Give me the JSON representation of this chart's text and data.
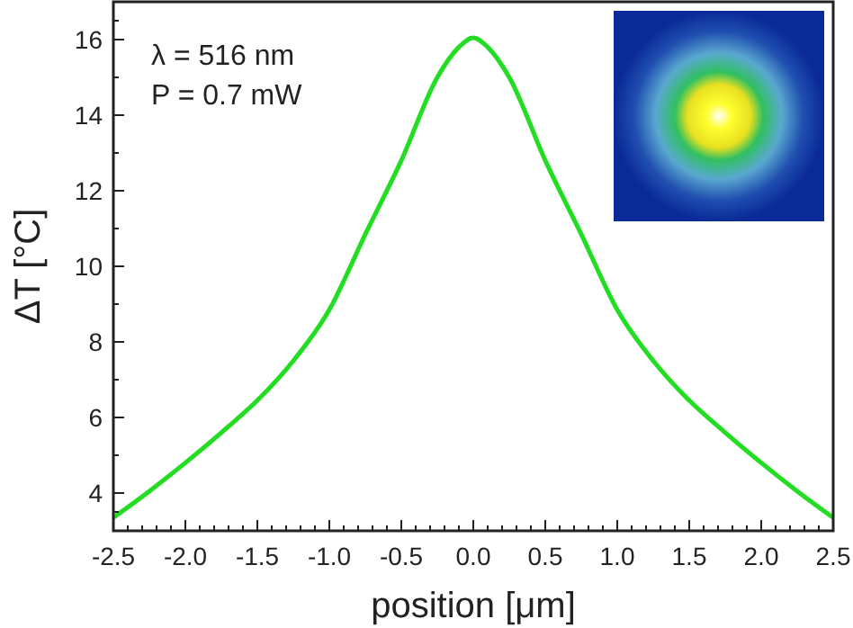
{
  "chart_data": {
    "type": "line",
    "xlabel": "position [μm]",
    "ylabel": "ΔT [°C]",
    "annotations": [
      "λ = 516 nm",
      "P = 0.7 mW"
    ],
    "x": [
      -2.5,
      -2.25,
      -2,
      -1.75,
      -1.5,
      -1.25,
      -1,
      -0.75,
      -0.5,
      -0.25,
      -0.1,
      0,
      0.1,
      0.25,
      0.5,
      0.75,
      1,
      1.25,
      1.5,
      1.75,
      2,
      2.25,
      2.5
    ],
    "series": [
      {
        "color": "#22dd22",
        "values": [
          3.35,
          4.05,
          4.8,
          5.6,
          6.45,
          7.5,
          8.85,
          10.85,
          12.8,
          15.0,
          15.8,
          16.05,
          15.8,
          15.0,
          12.8,
          10.85,
          8.85,
          7.5,
          6.45,
          5.6,
          4.8,
          4.05,
          3.35
        ]
      }
    ],
    "xlim": [
      -2.5,
      2.5
    ],
    "xticks": [
      {
        "value": -2.5,
        "label": "-2.5"
      },
      {
        "value": -2,
        "label": "-2.0"
      },
      {
        "value": -1.5,
        "label": "-1.5"
      },
      {
        "value": -1,
        "label": "-1.0"
      },
      {
        "value": -0.5,
        "label": "-0.5"
      },
      {
        "value": 0,
        "label": "0.0"
      },
      {
        "value": 0.5,
        "label": "0.5"
      },
      {
        "value": 1,
        "label": "1.0"
      },
      {
        "value": 1.5,
        "label": "1.5"
      },
      {
        "value": 2,
        "label": "2.0"
      },
      {
        "value": 2.5,
        "label": "2.5"
      }
    ],
    "ylim": [
      3,
      17
    ],
    "yticks": [
      4,
      6,
      8,
      10,
      12,
      14,
      16
    ],
    "grid": false,
    "marker": "none",
    "line_style": "solid"
  }
}
